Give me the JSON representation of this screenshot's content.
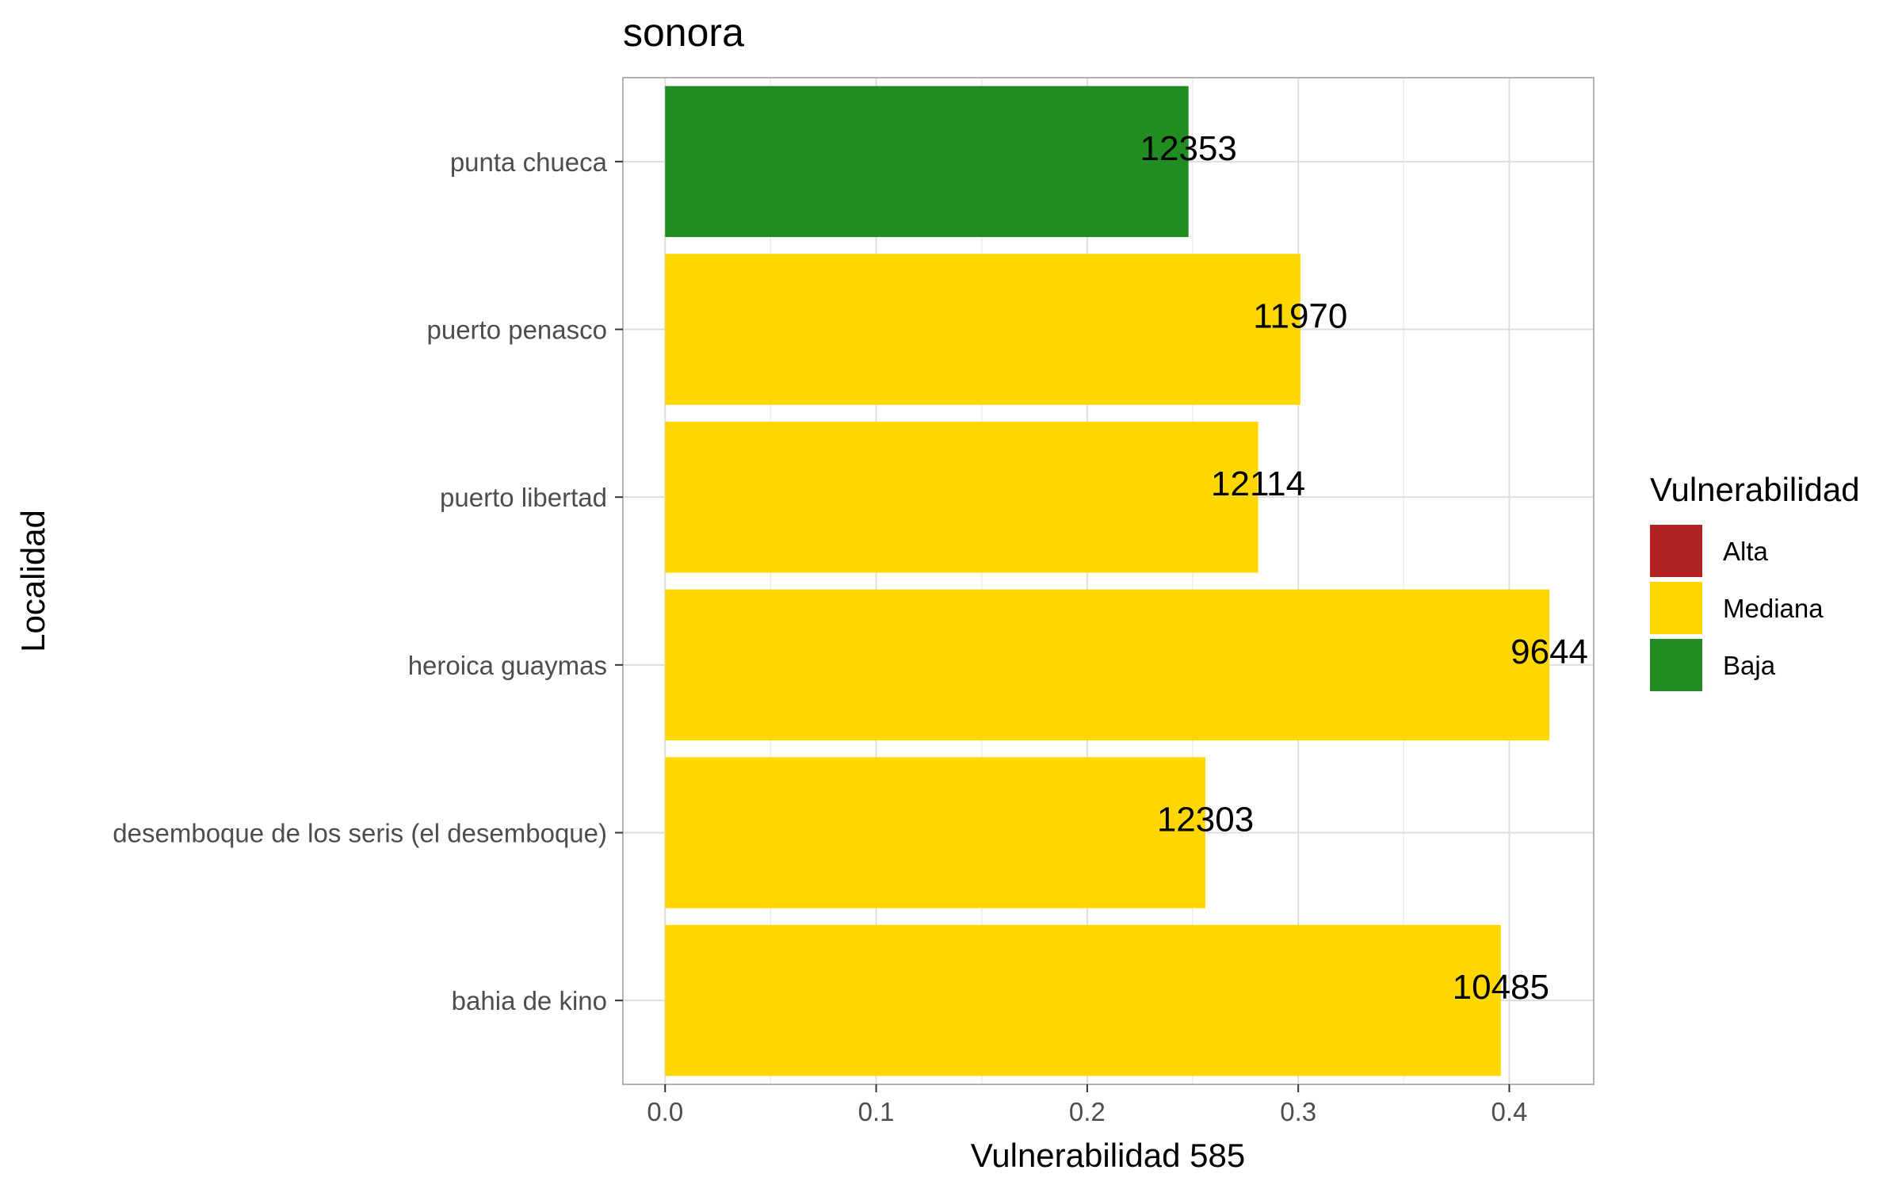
{
  "chart_data": {
    "type": "bar",
    "orientation": "horizontal",
    "title": "sonora",
    "xlabel": "Vulnerabilidad 585",
    "ylabel": "Localidad",
    "xlim": [
      -0.02,
      0.44
    ],
    "x_ticks": [
      0.0,
      0.1,
      0.2,
      0.3,
      0.4
    ],
    "x_tick_labels": [
      "0.0",
      "0.1",
      "0.2",
      "0.3",
      "0.4"
    ],
    "grid": true,
    "categories": [
      "punta chueca",
      "puerto penasco",
      "puerto libertad",
      "heroica guaymas",
      "desemboque de los seris (el desemboque)",
      "bahia de kino"
    ],
    "values": [
      0.248,
      0.301,
      0.281,
      0.419,
      0.256,
      0.396
    ],
    "labels": [
      "12353",
      "11970",
      "12114",
      "9644",
      "12303",
      "10485"
    ],
    "groups": [
      "Baja",
      "Mediana",
      "Mediana",
      "Mediana",
      "Mediana",
      "Mediana"
    ],
    "legend": {
      "title": "Vulnerabilidad",
      "position": "right",
      "items": [
        {
          "label": "Alta",
          "color": "#b22222"
        },
        {
          "label": "Mediana",
          "color": "#ffd700"
        },
        {
          "label": "Baja",
          "color": "#228b22"
        }
      ]
    }
  }
}
